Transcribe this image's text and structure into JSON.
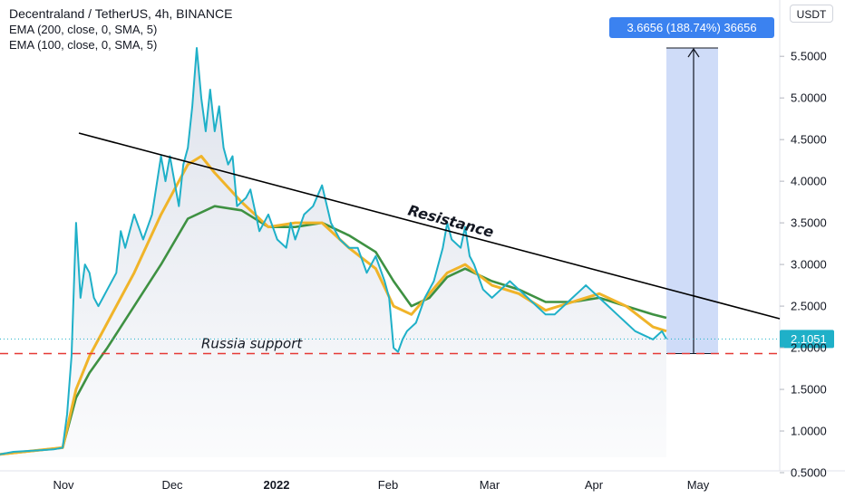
{
  "header": {
    "title": "Decentraland / TetherUS, 4h, BINANCE",
    "indicator_1": "EMA (200, close, 0, SMA, 5)",
    "indicator_2": "EMA (100, close, 0, SMA, 5)",
    "currency": "USDT"
  },
  "colors": {
    "price": "#1fb0c8",
    "ema_200": "#3e9142",
    "ema_100": "#f0b429",
    "resistance": "#000000",
    "support": "#e53935",
    "measure_fill": "#c7d6f7",
    "measure_label_bg": "#3b82f0",
    "price_tag_bg": "#1fb0c8"
  },
  "chart_data": {
    "type": "line",
    "y_range": [
      0.25,
      5.85
    ],
    "x_ticks": [
      "Nov",
      "Dec",
      "2022",
      "Feb",
      "Mar",
      "Apr",
      "May"
    ],
    "y_ticks": [
      "0.5000",
      "1.0000",
      "1.5000",
      "2.0000",
      "2.5000",
      "3.0000",
      "3.5000",
      "4.0000",
      "4.5000",
      "5.0000",
      "5.5000"
    ],
    "last_price": "2.1051",
    "series": [
      {
        "key": "price",
        "points": [
          [
            0,
            0.72
          ],
          [
            3,
            0.75
          ],
          [
            6,
            0.76
          ],
          [
            9,
            0.77
          ],
          [
            12,
            0.78
          ],
          [
            14,
            0.8
          ],
          [
            15,
            1.2
          ],
          [
            16,
            1.9
          ],
          [
            17,
            3.5
          ],
          [
            18,
            2.6
          ],
          [
            19,
            3.0
          ],
          [
            20,
            2.9
          ],
          [
            21,
            2.6
          ],
          [
            22,
            2.5
          ],
          [
            23,
            2.6
          ],
          [
            24,
            2.7
          ],
          [
            26,
            2.9
          ],
          [
            27,
            3.4
          ],
          [
            28,
            3.2
          ],
          [
            30,
            3.6
          ],
          [
            32,
            3.3
          ],
          [
            34,
            3.6
          ],
          [
            36,
            4.3
          ],
          [
            37,
            4.0
          ],
          [
            38,
            4.3
          ],
          [
            40,
            3.7
          ],
          [
            41,
            4.2
          ],
          [
            42,
            4.4
          ],
          [
            43,
            4.9
          ],
          [
            44,
            5.6
          ],
          [
            45,
            5.0
          ],
          [
            46,
            4.6
          ],
          [
            47,
            5.1
          ],
          [
            48,
            4.6
          ],
          [
            49,
            4.9
          ],
          [
            50,
            4.4
          ],
          [
            51,
            4.2
          ],
          [
            52,
            4.3
          ],
          [
            53,
            3.7
          ],
          [
            55,
            3.8
          ],
          [
            56,
            3.9
          ],
          [
            58,
            3.4
          ],
          [
            60,
            3.6
          ],
          [
            62,
            3.3
          ],
          [
            64,
            3.2
          ],
          [
            65,
            3.5
          ],
          [
            66,
            3.3
          ],
          [
            68,
            3.6
          ],
          [
            70,
            3.7
          ],
          [
            72,
            3.95
          ],
          [
            74,
            3.5
          ],
          [
            76,
            3.3
          ],
          [
            78,
            3.2
          ],
          [
            80,
            3.2
          ],
          [
            82,
            2.9
          ],
          [
            84,
            3.1
          ],
          [
            86,
            2.8
          ],
          [
            87,
            2.6
          ],
          [
            88,
            2.0
          ],
          [
            89,
            1.95
          ],
          [
            90,
            2.1
          ],
          [
            91,
            2.2
          ],
          [
            93,
            2.3
          ],
          [
            95,
            2.6
          ],
          [
            97,
            2.8
          ],
          [
            99,
            3.2
          ],
          [
            100,
            3.5
          ],
          [
            101,
            3.3
          ],
          [
            103,
            3.2
          ],
          [
            104,
            3.45
          ],
          [
            105,
            3.1
          ],
          [
            106,
            3.0
          ],
          [
            108,
            2.7
          ],
          [
            110,
            2.6
          ],
          [
            112,
            2.7
          ],
          [
            114,
            2.8
          ],
          [
            116,
            2.7
          ],
          [
            118,
            2.6
          ],
          [
            120,
            2.5
          ],
          [
            122,
            2.4
          ],
          [
            124,
            2.4
          ],
          [
            126,
            2.5
          ],
          [
            128,
            2.6
          ],
          [
            130,
            2.7
          ],
          [
            131,
            2.75
          ],
          [
            132,
            2.7
          ],
          [
            134,
            2.6
          ],
          [
            136,
            2.5
          ],
          [
            138,
            2.4
          ],
          [
            140,
            2.3
          ],
          [
            142,
            2.2
          ],
          [
            144,
            2.15
          ],
          [
            146,
            2.1
          ],
          [
            148,
            2.2
          ],
          [
            149,
            2.1051
          ]
        ]
      },
      {
        "key": "ema_200",
        "points": [
          [
            0,
            0.72
          ],
          [
            14,
            0.8
          ],
          [
            17,
            1.4
          ],
          [
            20,
            1.7
          ],
          [
            24,
            2.0
          ],
          [
            30,
            2.5
          ],
          [
            36,
            3.0
          ],
          [
            42,
            3.55
          ],
          [
            48,
            3.7
          ],
          [
            54,
            3.65
          ],
          [
            60,
            3.45
          ],
          [
            66,
            3.45
          ],
          [
            72,
            3.5
          ],
          [
            78,
            3.35
          ],
          [
            84,
            3.15
          ],
          [
            88,
            2.8
          ],
          [
            92,
            2.5
          ],
          [
            96,
            2.6
          ],
          [
            100,
            2.85
          ],
          [
            104,
            2.95
          ],
          [
            110,
            2.8
          ],
          [
            116,
            2.7
          ],
          [
            122,
            2.55
          ],
          [
            128,
            2.55
          ],
          [
            134,
            2.6
          ],
          [
            140,
            2.5
          ],
          [
            146,
            2.4
          ],
          [
            149,
            2.36
          ]
        ]
      },
      {
        "key": "ema_100",
        "points": [
          [
            0,
            0.72
          ],
          [
            14,
            0.8
          ],
          [
            17,
            1.5
          ],
          [
            20,
            1.9
          ],
          [
            24,
            2.3
          ],
          [
            30,
            2.9
          ],
          [
            36,
            3.6
          ],
          [
            42,
            4.2
          ],
          [
            45,
            4.3
          ],
          [
            48,
            4.1
          ],
          [
            54,
            3.75
          ],
          [
            60,
            3.45
          ],
          [
            66,
            3.5
          ],
          [
            72,
            3.5
          ],
          [
            78,
            3.2
          ],
          [
            84,
            2.95
          ],
          [
            88,
            2.5
          ],
          [
            92,
            2.4
          ],
          [
            96,
            2.65
          ],
          [
            100,
            2.9
          ],
          [
            104,
            3.0
          ],
          [
            110,
            2.75
          ],
          [
            116,
            2.65
          ],
          [
            122,
            2.45
          ],
          [
            128,
            2.55
          ],
          [
            134,
            2.65
          ],
          [
            140,
            2.5
          ],
          [
            146,
            2.25
          ],
          [
            149,
            2.2
          ]
        ]
      }
    ],
    "annotations": {
      "resistance_label": "Resistance",
      "support_label": "Russia support",
      "support_level": 1.93,
      "measure_label": "3.6656 (188.74%) 36656",
      "measure_from": 1.93,
      "measure_to": 5.6
    }
  }
}
